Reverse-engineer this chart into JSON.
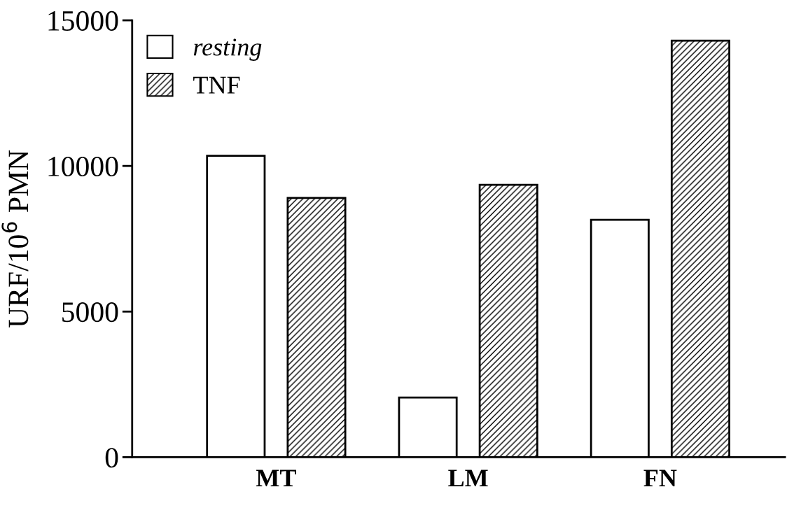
{
  "chart_data": {
    "type": "bar",
    "ylabel": "URF/10$^{6}$ PMN",
    "categories": [
      "MT",
      "LM",
      "FN"
    ],
    "series": [
      {
        "name": "resting",
        "color": "#ffffff",
        "values": [
          10350,
          2050,
          8150
        ]
      },
      {
        "name": "TNF",
        "color": "#000000",
        "values": [
          8900,
          9350,
          14300
        ]
      }
    ],
    "ylim": [
      0,
      15000
    ],
    "yticks": [
      0,
      5000,
      10000,
      15000
    ],
    "grid": false,
    "legend": "top left"
  }
}
